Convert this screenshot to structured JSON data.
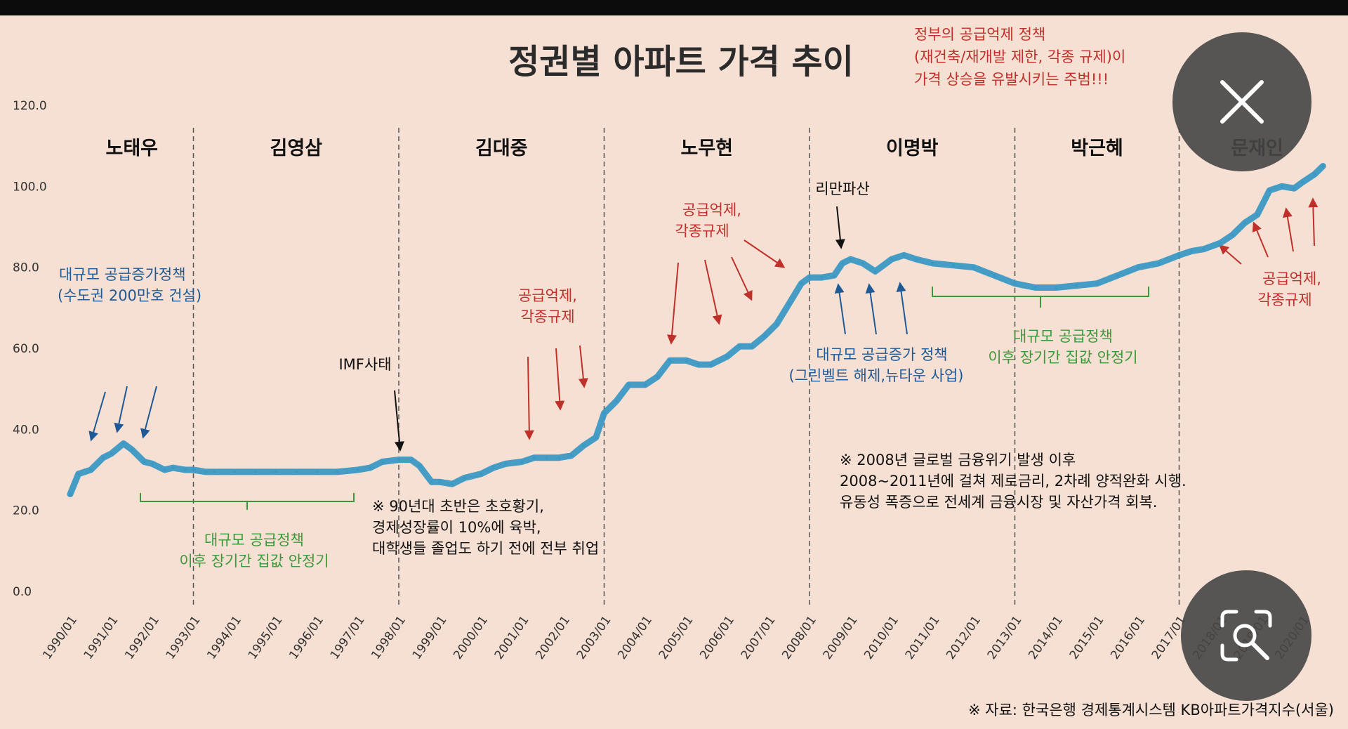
{
  "chart_data": {
    "type": "line",
    "title": "정권별 아파트 가격 추이",
    "ylim": [
      0,
      120
    ],
    "y_ticks": [
      "0.0",
      "20.0",
      "40.0",
      "60.0",
      "80.0",
      "100.0",
      "120.0"
    ],
    "x_ticks": [
      "1990/01",
      "1991/01",
      "1992/01",
      "1993/01",
      "1994/01",
      "1995/01",
      "1996/01",
      "1997/01",
      "1998/01",
      "1999/01",
      "2000/01",
      "2001/01",
      "2002/01",
      "2003/01",
      "2004/01",
      "2005/01",
      "2006/01",
      "2007/01",
      "2008/01",
      "2009/01",
      "2010/01",
      "2011/01",
      "2012/01",
      "2013/01",
      "2014/01",
      "2015/01",
      "2016/01",
      "2017/01",
      "2018/01",
      "2019/01",
      "2020/01"
    ],
    "series": [
      {
        "name": "KB아파트가격지수(서울)",
        "x": [
          1990.0,
          1990.2,
          1990.5,
          1990.8,
          1991.0,
          1991.3,
          1991.5,
          1991.8,
          1992.0,
          1992.3,
          1992.5,
          1992.8,
          1993.0,
          1993.3,
          1993.5,
          1994.0,
          1994.5,
          1995.0,
          1995.5,
          1996.0,
          1996.5,
          1997.0,
          1997.3,
          1997.6,
          1998.0,
          1998.3,
          1998.5,
          1998.8,
          1999.0,
          1999.3,
          1999.6,
          2000.0,
          2000.3,
          2000.6,
          2001.0,
          2001.3,
          2001.6,
          2001.9,
          2002.2,
          2002.5,
          2002.8,
          2003.0,
          2003.3,
          2003.6,
          2004.0,
          2004.3,
          2004.6,
          2005.0,
          2005.3,
          2005.6,
          2006.0,
          2006.3,
          2006.6,
          2006.9,
          2007.2,
          2007.5,
          2007.8,
          2008.0,
          2008.3,
          2008.6,
          2008.8,
          2009.0,
          2009.3,
          2009.6,
          2010.0,
          2010.3,
          2010.6,
          2011.0,
          2011.5,
          2012.0,
          2012.5,
          2013.0,
          2013.5,
          2014.0,
          2014.5,
          2015.0,
          2015.5,
          2016.0,
          2016.5,
          2017.0,
          2017.3,
          2017.6,
          2018.0,
          2018.3,
          2018.6,
          2018.9,
          2019.2,
          2019.5,
          2019.8,
          2020.0,
          2020.3,
          2020.5
        ],
        "values": [
          24,
          29,
          30,
          33,
          34,
          36.5,
          35,
          32,
          31.5,
          30,
          30.5,
          30,
          30,
          29.5,
          29.5,
          29.5,
          29.5,
          29.5,
          29.5,
          29.5,
          29.5,
          30,
          30.5,
          32,
          32.5,
          32.5,
          31,
          27,
          27,
          26.5,
          28,
          29,
          30.5,
          31.5,
          32,
          33,
          33,
          33,
          33.5,
          36,
          38,
          44,
          47,
          51,
          51,
          53,
          57,
          57,
          56,
          56,
          58,
          60.5,
          60.5,
          63,
          66,
          71,
          76,
          77.5,
          77.5,
          78,
          81,
          82,
          81,
          79,
          82,
          83,
          82,
          81,
          80.5,
          80,
          78,
          76,
          75,
          75,
          75.5,
          76,
          78,
          80,
          81,
          83,
          84,
          84.5,
          86,
          88,
          91,
          93,
          99,
          100,
          99.5,
          101,
          103,
          105
        ]
      }
    ],
    "eras": [
      "노태우",
      "김영삼",
      "김대중",
      "노무현",
      "이명박",
      "박근혜",
      "문재인"
    ],
    "annotations": {
      "top_red": [
        "정부의 공급억제 정책",
        "(재건축/재개발 제한, 각종 규제)이",
        "가격 상승을 유발시키는 주범!!!"
      ],
      "blue_1990": [
        "대규모 공급증가정책",
        "(수도권 200만호 건설)"
      ],
      "green_1993": [
        "대규모 공급정책",
        "이후 장기간 집값 안정기"
      ],
      "imf": "IMF사태",
      "black_1998": [
        "※ 90년대 초반은 초호황기,",
        "경제성장률이 10%에 육박,",
        "대학생들 졸업도 하기 전에 전부 취업"
      ],
      "red_2001": [
        "공급억제,",
        "각종규제"
      ],
      "red_2005": [
        "공급억제,",
        "각종규제"
      ],
      "lehman": "리만파산",
      "blue_2009": [
        "대규모 공급증가 정책",
        "(그린벨트 해제,뉴타운 사업)"
      ],
      "green_2013": [
        "대규모 공급정책",
        "이후 장기간 집값 안정기"
      ],
      "black_2008": [
        "※ 2008년 글로벌 금융위기 발생 이후",
        "2008~2011년에 걸쳐 제로금리, 2차례 양적완화 시행.",
        "유동성 폭증으로 전세계 금융시장 및 자산가격 회복."
      ],
      "red_2018": [
        "공급억제,",
        "각종규제"
      ],
      "source": "※ 자료: 한국은행 경제통계시스템 KB아파트가격지수(서울)"
    },
    "colors": {
      "line": "#3b98c4",
      "red": "#c0302b",
      "blue": "#1f5a96",
      "green": "#3a9a3a",
      "background": "#f6e0d3"
    }
  }
}
